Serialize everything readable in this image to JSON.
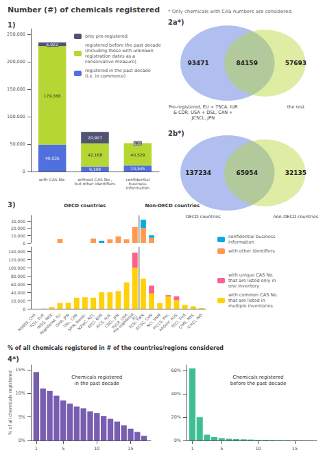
{
  "title": "Number (#) of chemicals registered",
  "subtitle": "* Only chemicals with CAS numbers are considered.",
  "chart_data": [
    {
      "type": "bar",
      "title": "1)",
      "stacked": true,
      "grid": false,
      "legend": "upper right",
      "data_labels": true,
      "categories": [
        "with CAS No.",
        "without CAS No.,\nbut other identifiers",
        "confidential\nbusiness\ninformation"
      ],
      "ylim": [
        0,
        260000
      ],
      "yticks": [
        0,
        {
          "value": 50000,
          "label": "50,000"
        },
        {
          "value": 100000,
          "label": "100,000"
        },
        {
          "value": 150000,
          "label": "150,000"
        },
        {
          "value": 200000,
          "label": "200,000"
        },
        {
          "value": 250000,
          "label": "250,000"
        }
      ],
      "series": [
        {
          "name": "registered in the past decade\n(i.e. in commerce)",
          "values": [
            49035,
            9199,
            10945
          ],
          "value_labels": [
            "49,035",
            "9,199",
            "10,945"
          ]
        },
        {
          "name": "registered before the past decade\n(including those with unknown\nregistration dates as a\nconservative measure)",
          "values": [
            179366,
            42168,
            40529
          ],
          "value_labels": [
            "179,366",
            "42,168",
            "40,529"
          ]
        },
        {
          "name": "only pre-registered",
          "values": [
            6922,
            20907,
            135
          ],
          "value_labels": [
            "6,922",
            "20,907",
            "135"
          ]
        }
      ]
    },
    {
      "type": "venn",
      "title": "2a*)",
      "categories": [
        "Pre-registered, EU + TSCA, IUR\n& CDR, USA + DSL, CAN +\nJCSCL, JPN",
        null,
        "the rest"
      ],
      "values": [
        93471,
        84159,
        57693
      ]
    },
    {
      "type": "venn",
      "title": "2b*)",
      "categories": [
        "OECD countries",
        null,
        "non-OECD countries"
      ],
      "values": [
        137234,
        65954,
        32135
      ]
    },
    {
      "type": "bar",
      "title": "3)",
      "stacked": true,
      "grid": false,
      "legend": "right",
      "tick_labels": "y",
      "categories": [
        "NSNRS, CHE",
        "TCSI, TUR",
        "INSQ, MEX",
        "Registered, EU",
        "ISHA, JPN",
        "DSL, CAN",
        "SPIN, Nordic",
        "NZIoC, NZL",
        "KECI, KOR",
        "AICS, AUS",
        "CSCL, JPN",
        "TSCA, USA",
        "Pre-registered,\nEU",
        "TCSI, TWN",
        "IECSC, CHN",
        "NCI, VNM",
        "PICCS, PHL",
        "RPOHV, RUS",
        "TECI, THA",
        "CIMS, MYS",
        "ICHCI, IND"
      ],
      "oecd_count": 13,
      "annotations": [
        "OECD countries",
        "Non-OECD countries"
      ],
      "ylim": [
        0,
        38000
      ],
      "yticks": [
        0,
        {
          "value": 10000,
          "label": "10,000"
        },
        {
          "value": 20000,
          "label": "20,000"
        },
        {
          "value": 30000,
          "label": "30,000"
        }
      ],
      "series": [
        {
          "name": "with other identifiers",
          "values": [
            0,
            0,
            0,
            5500,
            0,
            0,
            0,
            6000,
            0,
            5000,
            9000,
            5000,
            22000,
            20500,
            7000,
            0,
            0,
            0,
            0,
            0,
            0
          ]
        },
        {
          "name": "confidential business\ninformation",
          "values": [
            0,
            0,
            0,
            0,
            0,
            0,
            0,
            0,
            3000,
            0,
            0,
            0,
            0,
            11500,
            3500,
            0,
            0,
            0,
            0,
            0,
            0
          ]
        }
      ]
    },
    {
      "type": "bar",
      "stacked": true,
      "grid": false,
      "legend": "right",
      "categories": [
        "NSNRS, CHE",
        "TCSI, TUR",
        "INSQ, MEX",
        "Registered, EU",
        "ISHA, JPN",
        "DSL, CAN",
        "SPIN, Nordic",
        "NZIoC, NZL",
        "KECI, KOR",
        "AICS, AUS",
        "CSCL, JPN",
        "TSCA, USA",
        "Pre-registered,\nEU",
        "TCSI, TWN",
        "IECSC, CHN",
        "NCI, VNM",
        "PICCS, PHL",
        "RPOHV, RUS",
        "TECI, THA",
        "CIMS, MYS",
        "ICHCI, IND"
      ],
      "oecd_count": 13,
      "ylim": [
        0,
        150000
      ],
      "yticks": [
        0,
        {
          "value": 20000,
          "label": "20,000"
        },
        {
          "value": 40000,
          "label": "40,000"
        },
        {
          "value": 60000,
          "label": "60,000"
        },
        {
          "value": 80000,
          "label": "80,000"
        },
        {
          "value": 100000,
          "label": "100,000"
        },
        {
          "value": 120000,
          "label": "120,000"
        },
        {
          "value": 140000,
          "label": "140,000"
        }
      ],
      "series": [
        {
          "name": "with common CAS No.\nthat are listed in\nmultiple inventories",
          "values": [
            0,
            500,
            4000,
            14000,
            14500,
            27000,
            28000,
            27000,
            40000,
            40000,
            43000,
            64000,
            100000,
            73000,
            37000,
            14000,
            30000,
            21000,
            9500,
            6000,
            1500
          ]
        },
        {
          "name": "with unique CAS No.\nthat are listed only in\none inventory",
          "values": [
            0,
            0,
            0,
            0,
            0,
            0,
            0,
            0,
            0,
            0,
            0,
            0,
            36000,
            0,
            19000,
            0,
            3000,
            9000,
            0,
            0,
            0
          ]
        }
      ]
    },
    {
      "type": "bar",
      "title": "4*)",
      "subtitle": "% of all chemicals registered in # of the countries/regions considered",
      "annotations": [
        "Chemicals registered\nin the past decade"
      ],
      "ylabel": "% of all chemicals registered",
      "grid": false,
      "x": [
        1,
        2,
        3,
        4,
        5,
        6,
        7,
        8,
        9,
        10,
        11,
        12,
        13,
        14,
        15,
        16,
        17
      ],
      "values": [
        14.5,
        11.0,
        10.5,
        9.5,
        8.5,
        7.8,
        7.2,
        6.8,
        6.2,
        5.8,
        5.2,
        4.6,
        4.0,
        3.2,
        2.5,
        1.8,
        1.0
      ],
      "xlim": [
        0.2,
        18
      ],
      "xticks": [
        1,
        5,
        10,
        15
      ],
      "ylim": [
        0,
        16
      ],
      "yticks": [
        {
          "value": 0,
          "label": "0%"
        },
        {
          "value": 5,
          "label": "5%"
        },
        {
          "value": 10,
          "label": "10%"
        },
        {
          "value": 15,
          "label": "15%"
        }
      ]
    },
    {
      "type": "bar",
      "annotations": [
        "Chemicals registered\nbefore the past decade"
      ],
      "grid": false,
      "x": [
        1,
        2,
        3,
        4,
        5,
        6,
        7,
        8,
        9,
        10,
        11,
        12,
        13,
        14,
        15,
        16,
        17
      ],
      "values": [
        62,
        20,
        5,
        3,
        2,
        1.5,
        1.2,
        1.0,
        0.8,
        0.6,
        0.5,
        0.4,
        0.3,
        0.25,
        0.2,
        0.15,
        0.1
      ],
      "xlim": [
        0.2,
        18
      ],
      "xticks": [
        1,
        5,
        10,
        15
      ],
      "ylim": [
        0,
        65
      ],
      "yticks": [
        {
          "value": 0,
          "label": "0%"
        },
        {
          "value": 20,
          "label": "20%"
        },
        {
          "value": 40,
          "label": "40%"
        },
        {
          "value": 60,
          "label": "60%"
        }
      ]
    }
  ]
}
